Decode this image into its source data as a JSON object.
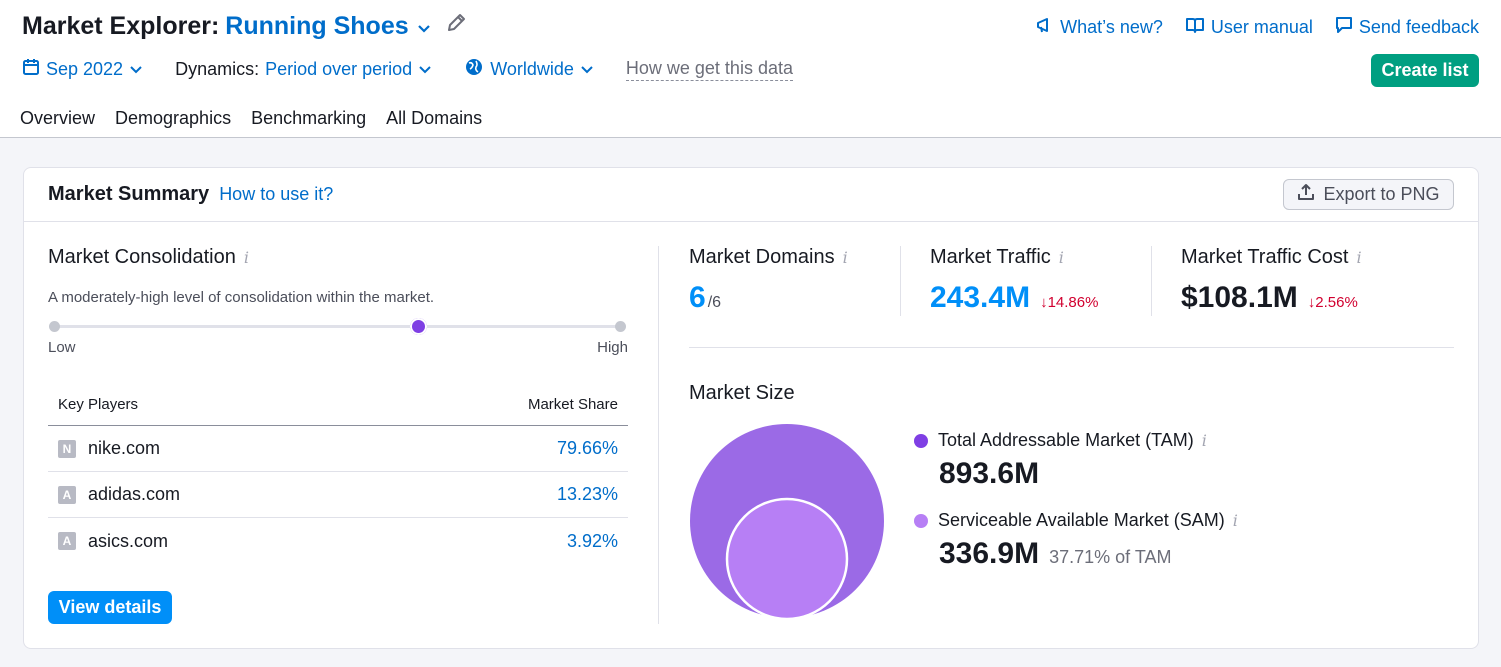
{
  "header": {
    "title_prefix": "Market Explorer:",
    "title_market": "Running Shoes",
    "links": [
      "What’s new?",
      "User manual",
      "Send feedback"
    ]
  },
  "filters": {
    "date": "Sep 2022",
    "dynamics_label": "Dynamics:",
    "dynamics_value": "Period over period",
    "region": "Worldwide",
    "how_link": "How we get this data"
  },
  "create_list": "Create list",
  "tabs": [
    "Overview",
    "Demographics",
    "Benchmarking",
    "All Domains"
  ],
  "card": {
    "title": "Market Summary",
    "how_link": "How to use it?",
    "export": "Export to PNG"
  },
  "consolidation": {
    "title": "Market Consolidation",
    "description": "A moderately-high level of consolidation within the market.",
    "low": "Low",
    "high": "High",
    "level": 0.65
  },
  "key_players": {
    "col_domain": "Key Players",
    "col_share": "Market Share",
    "rows": [
      {
        "favicon": "N",
        "domain": "nike.com",
        "share": "79.66%"
      },
      {
        "favicon": "A",
        "domain": "adidas.com",
        "share": "13.23%"
      },
      {
        "favicon": "A",
        "domain": "asics.com",
        "share": "3.92%"
      }
    ]
  },
  "view_details": "View details",
  "metrics": {
    "domains": {
      "label": "Market Domains",
      "value": "6",
      "total": "/6"
    },
    "traffic": {
      "label": "Market Traffic",
      "value": "243.4M",
      "change": "↓14.86%"
    },
    "cost": {
      "label": "Market Traffic Cost",
      "value": "$108.1M",
      "change": "↓2.56%"
    }
  },
  "market_size": {
    "title": "Market Size",
    "tam": {
      "label": "Total Addressable Market (TAM)",
      "value": "893.6M",
      "color": "#9b6ae6"
    },
    "sam": {
      "label": "Serviceable Available Market (SAM)",
      "value": "336.9M",
      "note": "37.71% of TAM",
      "color": "#b77ff5"
    }
  },
  "colors": {
    "accent": "#006dca",
    "green": "#009f81",
    "purple": "#7f3fe4",
    "negative": "#d1002f"
  }
}
